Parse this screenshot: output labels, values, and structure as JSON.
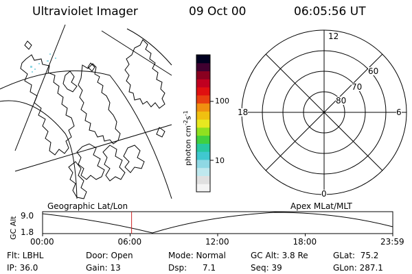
{
  "header": {
    "title": "Ultraviolet Imager",
    "date": "09 Oct 00",
    "time": "06:05:56 UT"
  },
  "colorbar": {
    "unit": "photon cm",
    "unit_exp1": "-2",
    "unit_s": "s",
    "unit_exp2": "-1",
    "tick_100": "100",
    "tick_10": "10",
    "colors": [
      "#f4f4f4",
      "#e0e0e0",
      "#bfe8ee",
      "#8fd8e4",
      "#40c8d0",
      "#28c8a0",
      "#40d040",
      "#90e020",
      "#e8e820",
      "#f0c010",
      "#f09010",
      "#e84010",
      "#e01010",
      "#c00020",
      "#8a0020",
      "#400030",
      "#000020"
    ]
  },
  "polar": {
    "mlt_12": "12",
    "mlt_18": "18",
    "mlt_6": "6",
    "mlt_0": "0",
    "lat_60": "60",
    "lat_70": "70",
    "lat_80": "80"
  },
  "plot": {
    "left_label": "Geographic Lat/Lon",
    "right_label": "Apex MLat/MLT",
    "y_axis_label": "GC Alt",
    "y_top": "9.0",
    "y_bottom": "1.8",
    "x_ticks": [
      "00:00",
      "06:00",
      "12:00",
      "18:00",
      "23:59"
    ],
    "current_hour": 6.1
  },
  "footer": {
    "row1": {
      "flt": "Flt: LBHL",
      "door": "Door: Open",
      "mode": "Mode: Normal",
      "gcalt": "GC Alt: 3.8 Re",
      "glat": "GLat:  75.2"
    },
    "row2": {
      "ip": "IP: 36.0",
      "gain": "Gain: 13",
      "dsp": "Dsp:      7.1",
      "seq": "Seq: 39",
      "glon": "GLon: 287.1"
    }
  }
}
